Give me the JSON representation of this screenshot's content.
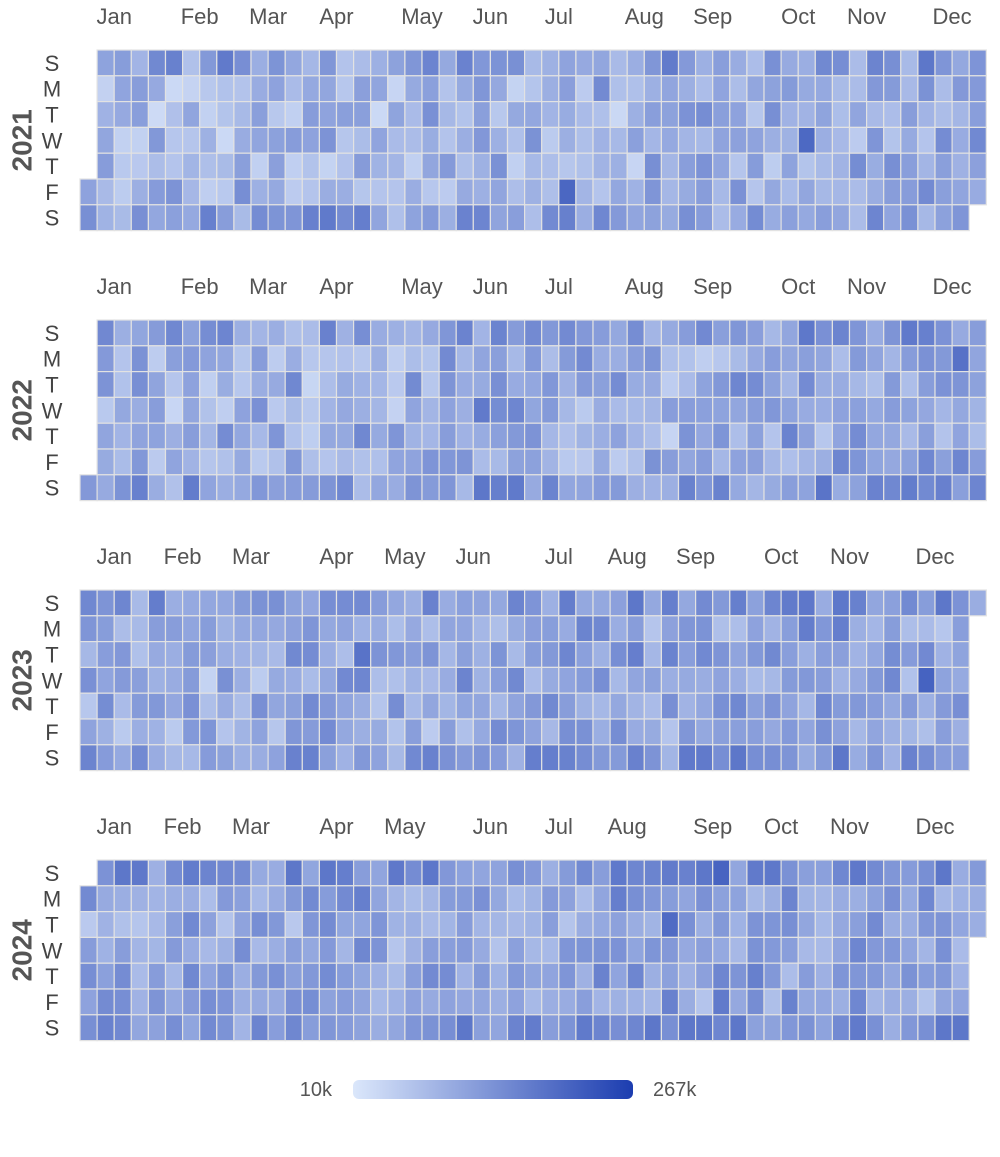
{
  "chart_data": {
    "type": "heatmap",
    "subtype": "calendar",
    "years": [
      "2021",
      "2022",
      "2023",
      "2024"
    ],
    "weekday_labels": [
      "S",
      "M",
      "T",
      "W",
      "T",
      "F",
      "S"
    ],
    "month_labels": [
      "Jan",
      "Feb",
      "Mar",
      "Apr",
      "May",
      "Jun",
      "Jul",
      "Aug",
      "Sep",
      "Oct",
      "Nov",
      "Dec"
    ],
    "color_scale": {
      "min": 10000,
      "max": 267000,
      "min_label": "10k",
      "max_label": "267k",
      "min_color": "#dbe7fb",
      "max_color": "#1c3db0"
    },
    "typical_range": [
      20000,
      180000
    ],
    "year_start_weekday": {
      "2021": 5,
      "2022": 6,
      "2023": 0,
      "2024": 1
    },
    "days_in_year": {
      "2021": 365,
      "2022": 365,
      "2023": 365,
      "2024": 366
    },
    "month_label_week": {
      "2021": [
        2,
        7,
        11,
        15,
        20,
        24,
        28,
        33,
        37,
        42,
        46,
        51
      ],
      "2022": [
        2,
        7,
        11,
        15,
        20,
        24,
        28,
        33,
        37,
        42,
        46,
        51
      ],
      "2023": [
        2,
        6,
        10,
        15,
        19,
        23,
        28,
        32,
        36,
        41,
        45,
        50
      ],
      "2024": [
        2,
        6,
        10,
        15,
        19,
        24,
        28,
        32,
        37,
        41,
        45,
        50
      ]
    },
    "grid": false,
    "legend": "bottom"
  }
}
